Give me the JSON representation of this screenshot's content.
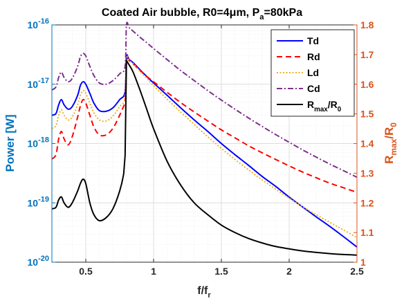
{
  "chart_data": {
    "type": "line",
    "title": "Coated Air bubble, R0=4μm, P_a=80kPa",
    "xlabel": "f/f_r",
    "ylabel_left": "Power [W]",
    "ylabel_right": "R_max/R_0",
    "xlim": [
      0.25,
      2.5
    ],
    "ylim_left": [
      1e-20,
      1e-16
    ],
    "yscale_left": "log",
    "ylim_right": [
      1.0,
      1.8
    ],
    "x_ticks": [
      0.5,
      1,
      1.5,
      2,
      2.5
    ],
    "x_tick_labels": [
      "0.5",
      "1",
      "1.5",
      "2",
      "2.5"
    ],
    "y_left_ticks": [
      1e-20,
      1e-19,
      1e-18,
      1e-17,
      1e-16
    ],
    "y_left_tick_labels": [
      {
        "base": "10",
        "exp": "-20"
      },
      {
        "base": "10",
        "exp": "-19"
      },
      {
        "base": "10",
        "exp": "-18"
      },
      {
        "base": "10",
        "exp": "-17"
      },
      {
        "base": "10",
        "exp": "-16"
      }
    ],
    "y_right_ticks": [
      1,
      1.1,
      1.2,
      1.3,
      1.4,
      1.5,
      1.6,
      1.7,
      1.8
    ],
    "y_right_tick_labels": [
      "1",
      "1.1",
      "1.2",
      "1.3",
      "1.4",
      "1.5",
      "1.6",
      "1.7",
      "1.8"
    ],
    "grid": true,
    "legend_position": "top-right",
    "colors": {
      "left_axis": "#0072BD",
      "right_axis": "#D95319",
      "Td": "#0000FF",
      "Rd": "#FF0000",
      "Ld": "#EDB120",
      "Cd": "#7E2F8E",
      "Rmax": "#000000"
    },
    "series": [
      {
        "name": "Td",
        "axis": "left",
        "style": "solid",
        "x": [
          0.25,
          0.28,
          0.3,
          0.32,
          0.34,
          0.37,
          0.4,
          0.44,
          0.46,
          0.48,
          0.5,
          0.53,
          0.56,
          0.6,
          0.65,
          0.7,
          0.75,
          0.79,
          0.8,
          0.82,
          0.85,
          0.9,
          0.95,
          1.0,
          1.1,
          1.2,
          1.3,
          1.4,
          1.5,
          1.6,
          1.7,
          1.8,
          1.9,
          2.0,
          2.1,
          2.2,
          2.3,
          2.4,
          2.5
        ],
        "y": [
          3e-18,
          3.2e-18,
          4.5e-18,
          5.5e-18,
          4.5e-18,
          3.8e-18,
          4.2e-18,
          6.5e-18,
          9.5e-18,
          1.1e-17,
          1e-17,
          7e-18,
          4.8e-18,
          3.6e-18,
          3.5e-18,
          4e-18,
          5.5e-18,
          7.5e-18,
          2.9e-17,
          2.6e-17,
          2.3e-17,
          1.75e-17,
          1.35e-17,
          1.05e-17,
          6.5e-18,
          4e-18,
          2.5e-18,
          1.6e-18,
          1e-18,
          6.5e-19,
          4.3e-19,
          2.8e-19,
          1.9e-19,
          1.25e-19,
          8.5e-20,
          5.8e-20,
          4e-20,
          2.7e-20,
          1.8e-20
        ]
      },
      {
        "name": "Rd",
        "axis": "left",
        "style": "dashed",
        "x": [
          0.25,
          0.28,
          0.3,
          0.32,
          0.34,
          0.37,
          0.4,
          0.44,
          0.46,
          0.48,
          0.5,
          0.53,
          0.56,
          0.6,
          0.65,
          0.7,
          0.75,
          0.79,
          0.8,
          0.82,
          0.85,
          0.9,
          0.95,
          1.0,
          1.1,
          1.2,
          1.3,
          1.4,
          1.5,
          1.6,
          1.7,
          1.8,
          1.9,
          2.0,
          2.1,
          2.2,
          2.3,
          2.4,
          2.5
        ],
        "y": [
          5.5e-19,
          6.5e-19,
          1.2e-18,
          1.6e-18,
          1.2e-18,
          9.5e-19,
          1.3e-18,
          2.8e-18,
          4.3e-18,
          5.5e-18,
          4.8e-18,
          3e-18,
          1.9e-18,
          1.4e-18,
          1.4e-18,
          1.8e-18,
          3e-18,
          4.8e-18,
          2.9e-17,
          2.5e-17,
          2.2e-17,
          1.7e-17,
          1.35e-17,
          1.1e-17,
          7.3e-18,
          4.9e-18,
          3.4e-18,
          2.4e-18,
          1.7e-18,
          1.25e-18,
          9.2e-19,
          7e-19,
          5.4e-19,
          4.2e-19,
          3.3e-19,
          2.65e-19,
          2.15e-19,
          1.8e-19,
          1.5e-19
        ]
      },
      {
        "name": "Ld",
        "axis": "left",
        "style": "dotted",
        "x": [
          0.25,
          0.28,
          0.3,
          0.32,
          0.34,
          0.37,
          0.4,
          0.44,
          0.46,
          0.48,
          0.5,
          0.53,
          0.56,
          0.6,
          0.65,
          0.7,
          0.75,
          0.79,
          0.8,
          0.82,
          0.85,
          0.9,
          0.95,
          1.0,
          1.1,
          1.2,
          1.3,
          1.4,
          1.5,
          1.6,
          1.7,
          1.8,
          1.9,
          2.0,
          2.1,
          2.2,
          2.3,
          2.4,
          2.5
        ],
        "y": [
          1.8e-18,
          2e-18,
          3e-18,
          3.7e-18,
          3e-18,
          2.5e-18,
          2.8e-18,
          4.5e-18,
          6.5e-18,
          7.8e-18,
          7e-18,
          4.8e-18,
          3.3e-18,
          2.5e-18,
          2.4e-18,
          2.9e-18,
          4.2e-18,
          6e-18,
          2.8e-17,
          2.5e-17,
          2.2e-17,
          1.65e-17,
          1.25e-17,
          9.5e-18,
          5.6e-18,
          3.4e-18,
          2.1e-18,
          1.3e-18,
          8.3e-19,
          5.4e-19,
          3.6e-19,
          2.45e-19,
          1.7e-19,
          1.2e-19,
          8.6e-20,
          6.3e-20,
          4.7e-20,
          3.5e-20,
          2.6e-20
        ]
      },
      {
        "name": "Cd",
        "axis": "left",
        "style": "dashdot",
        "x": [
          0.25,
          0.28,
          0.3,
          0.32,
          0.34,
          0.37,
          0.4,
          0.44,
          0.46,
          0.48,
          0.5,
          0.53,
          0.56,
          0.6,
          0.65,
          0.7,
          0.75,
          0.79,
          0.8,
          0.82,
          0.85,
          0.9,
          0.95,
          1.0,
          1.1,
          1.2,
          1.3,
          1.4,
          1.5,
          1.6,
          1.7,
          1.8,
          1.9,
          2.0,
          2.1,
          2.2,
          2.3,
          2.4,
          2.5
        ],
        "y": [
          8e-18,
          9e-18,
          1.3e-17,
          1.6e-17,
          1.3e-17,
          1.1e-17,
          1.25e-17,
          2e-17,
          2.9e-17,
          3.3e-17,
          3e-17,
          2e-17,
          1.4e-17,
          1.05e-17,
          1e-17,
          1.15e-17,
          1.5e-17,
          2e-17,
          1e-16,
          9e-17,
          7.8e-17,
          6.2e-17,
          5e-17,
          4e-17,
          2.6e-17,
          1.7e-17,
          1.15e-17,
          7.8e-18,
          5.4e-18,
          3.8e-18,
          2.7e-18,
          1.95e-18,
          1.42e-18,
          1.05e-18,
          7.8e-19,
          5.9e-19,
          4.5e-19,
          3.5e-19,
          2.7e-19
        ]
      },
      {
        "name": "R_max/R_0",
        "axis": "right",
        "style": "solid",
        "x": [
          0.25,
          0.28,
          0.3,
          0.32,
          0.34,
          0.37,
          0.4,
          0.44,
          0.46,
          0.48,
          0.5,
          0.53,
          0.56,
          0.6,
          0.65,
          0.7,
          0.75,
          0.78,
          0.79,
          0.8,
          0.82,
          0.85,
          0.9,
          0.95,
          1.0,
          1.1,
          1.2,
          1.3,
          1.4,
          1.5,
          1.6,
          1.7,
          1.8,
          1.9,
          2.0,
          2.1,
          2.2,
          2.3,
          2.4,
          2.5
        ],
        "y": [
          1.18,
          1.185,
          1.21,
          1.22,
          1.2,
          1.185,
          1.2,
          1.24,
          1.265,
          1.28,
          1.265,
          1.2,
          1.16,
          1.14,
          1.15,
          1.18,
          1.24,
          1.3,
          1.36,
          1.68,
          1.665,
          1.64,
          1.58,
          1.515,
          1.45,
          1.34,
          1.26,
          1.2,
          1.16,
          1.125,
          1.1,
          1.08,
          1.065,
          1.053,
          1.045,
          1.038,
          1.033,
          1.029,
          1.026,
          1.024
        ]
      }
    ]
  }
}
